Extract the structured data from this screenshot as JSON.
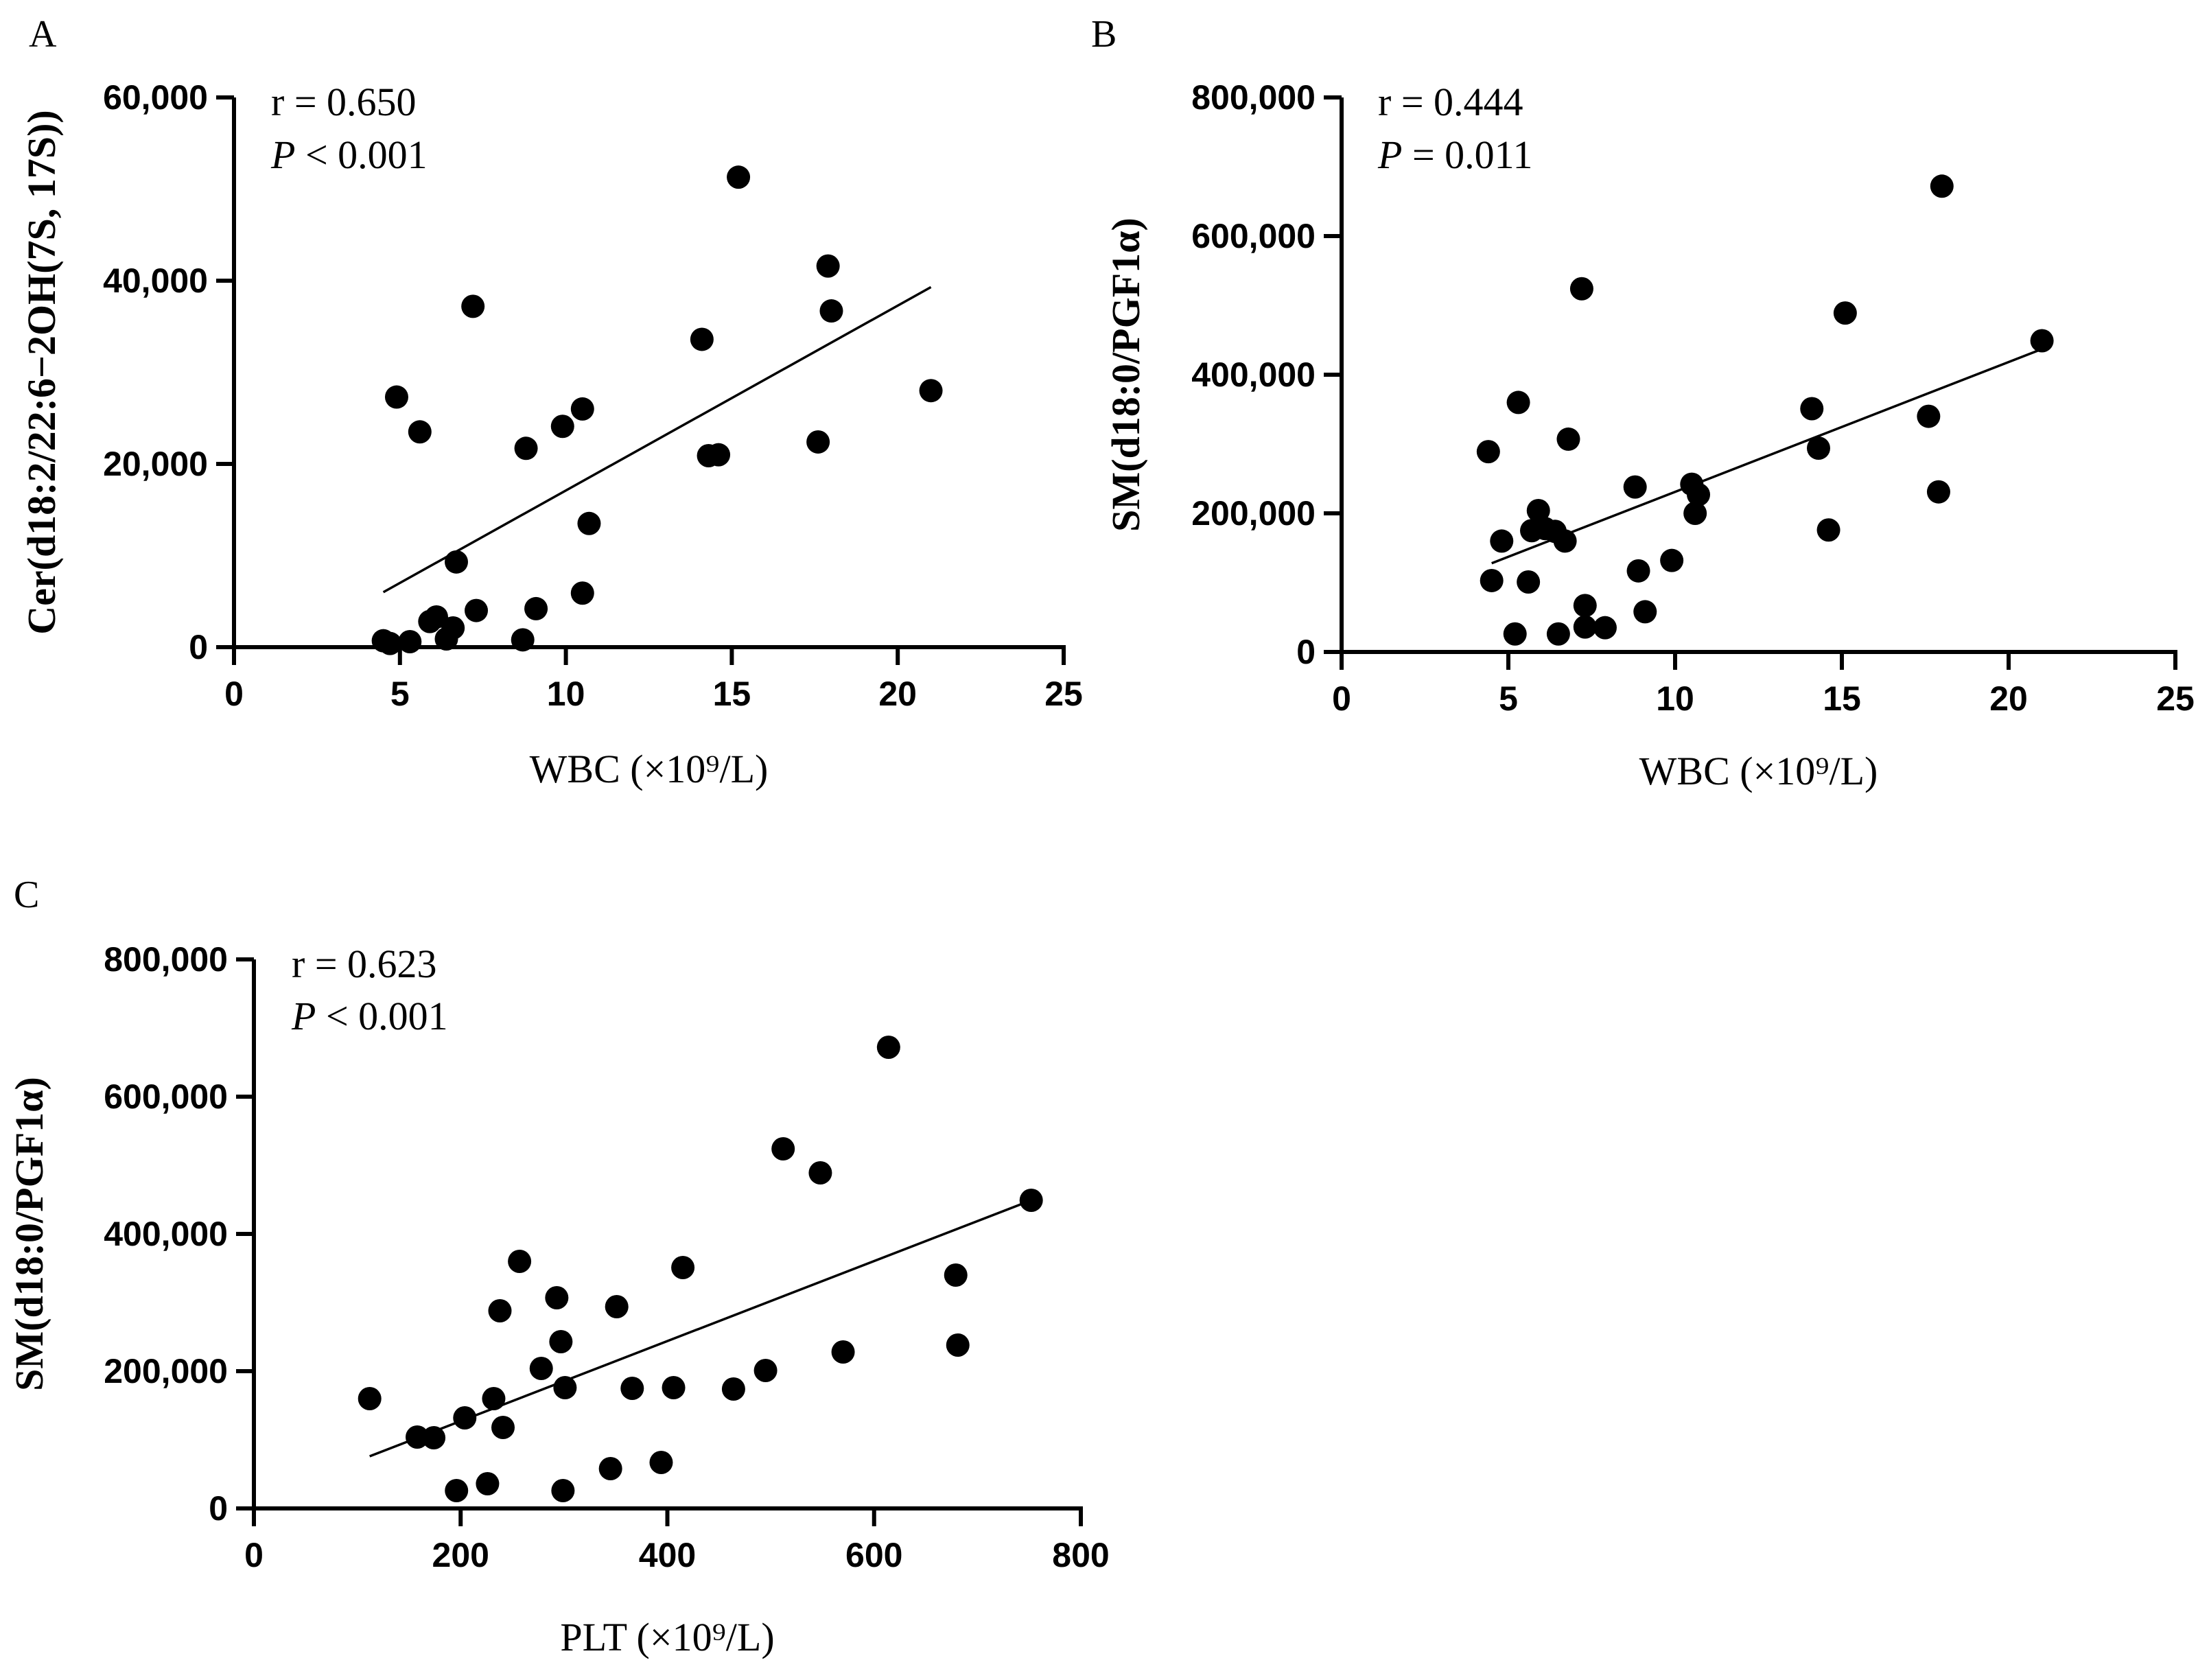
{
  "chart_data": [
    {
      "type": "scatter",
      "panel": "A",
      "xlabel": "WBC (×10⁹/L)",
      "ylabel": "Cer(d18:2/22:6−2OH(7S, 17S))",
      "xlim": [
        0,
        25
      ],
      "ylim": [
        0,
        60000
      ],
      "xticks": [
        0,
        5,
        10,
        15,
        20,
        25
      ],
      "xtick_labels": [
        "0",
        "5",
        "10",
        "15",
        "20",
        "25"
      ],
      "yticks": [
        0,
        20000,
        40000,
        60000
      ],
      "ytick_labels": [
        "0",
        "20,000",
        "40,000",
        "60,000"
      ],
      "stat_r": "r = 0.650",
      "stat_p_symbol": "P",
      "stat_p_rest": " < 0.001",
      "fit_line": [
        [
          4.5,
          6000
        ],
        [
          21.0,
          39300
        ]
      ],
      "points": [
        [
          4.5,
          700
        ],
        [
          4.7,
          400
        ],
        [
          4.9,
          27300
        ],
        [
          5.3,
          600
        ],
        [
          5.6,
          23500
        ],
        [
          5.9,
          2800
        ],
        [
          6.1,
          3300
        ],
        [
          6.4,
          900
        ],
        [
          6.6,
          2100
        ],
        [
          6.7,
          9300
        ],
        [
          7.2,
          37200
        ],
        [
          7.3,
          4000
        ],
        [
          8.7,
          800
        ],
        [
          8.8,
          21700
        ],
        [
          9.1,
          4200
        ],
        [
          9.9,
          24100
        ],
        [
          10.5,
          26000
        ],
        [
          10.5,
          5900
        ],
        [
          10.7,
          13500
        ],
        [
          14.1,
          33600
        ],
        [
          14.3,
          20900
        ],
        [
          14.6,
          21000
        ],
        [
          15.2,
          51300
        ],
        [
          17.6,
          22400
        ],
        [
          17.9,
          41600
        ],
        [
          18.0,
          36700
        ],
        [
          21.0,
          28000
        ]
      ]
    },
    {
      "type": "scatter",
      "panel": "B",
      "xlabel": "WBC (×10⁹/L)",
      "ylabel": "SM(d18:0/PGF1α)",
      "xlim": [
        0,
        25
      ],
      "ylim": [
        0,
        800000
      ],
      "xticks": [
        0,
        5,
        10,
        15,
        20,
        25
      ],
      "xtick_labels": [
        "0",
        "5",
        "10",
        "15",
        "20",
        "25"
      ],
      "yticks": [
        0,
        200000,
        400000,
        600000,
        800000
      ],
      "ytick_labels": [
        "0",
        "200,000",
        "400,000",
        "600,000",
        "800,000"
      ],
      "stat_r": "r = 0.444",
      "stat_p_symbol": "P",
      "stat_p_rest": " = 0.011",
      "fit_line": [
        [
          4.5,
          128000
        ],
        [
          21.0,
          437000
        ]
      ],
      "points": [
        [
          4.4,
          289000
        ],
        [
          4.5,
          103000
        ],
        [
          4.8,
          160000
        ],
        [
          5.2,
          26000
        ],
        [
          5.3,
          360000
        ],
        [
          5.6,
          101000
        ],
        [
          5.7,
          175000
        ],
        [
          5.9,
          204000
        ],
        [
          6.1,
          178000
        ],
        [
          6.4,
          174000
        ],
        [
          6.5,
          26000
        ],
        [
          6.7,
          160000
        ],
        [
          6.8,
          307000
        ],
        [
          7.2,
          524000
        ],
        [
          7.3,
          67000
        ],
        [
          7.3,
          36000
        ],
        [
          7.9,
          35000
        ],
        [
          8.8,
          238000
        ],
        [
          8.9,
          117000
        ],
        [
          9.1,
          58000
        ],
        [
          9.9,
          132000
        ],
        [
          10.5,
          242000
        ],
        [
          10.6,
          200000
        ],
        [
          10.7,
          227000
        ],
        [
          14.1,
          351000
        ],
        [
          14.3,
          294000
        ],
        [
          14.6,
          176000
        ],
        [
          15.1,
          489000
        ],
        [
          17.6,
          340000
        ],
        [
          17.9,
          231000
        ],
        [
          18.0,
          672000
        ],
        [
          21.0,
          449000
        ]
      ]
    },
    {
      "type": "scatter",
      "panel": "C",
      "xlabel": "PLT (×10⁹/L)",
      "ylabel": "SM(d18:0/PGF1α)",
      "xlim": [
        0,
        800
      ],
      "ylim": [
        0,
        800000
      ],
      "xticks": [
        0,
        200,
        400,
        600,
        800
      ],
      "xtick_labels": [
        "0",
        "200",
        "400",
        "600",
        "800"
      ],
      "yticks": [
        0,
        200000,
        400000,
        600000,
        800000
      ],
      "ytick_labels": [
        "0",
        "200,000",
        "400,000",
        "600,000",
        "800,000"
      ],
      "stat_r": "r = 0.623",
      "stat_p_symbol": "P",
      "stat_p_rest": " < 0.001",
      "fit_line": [
        [
          112,
          76000
        ],
        [
          752,
          449000
        ]
      ],
      "points": [
        [
          112,
          160000
        ],
        [
          158,
          104000
        ],
        [
          174,
          103000
        ],
        [
          196,
          26000
        ],
        [
          204,
          132000
        ],
        [
          226,
          36000
        ],
        [
          232,
          160000
        ],
        [
          238,
          288000
        ],
        [
          241,
          118000
        ],
        [
          257,
          360000
        ],
        [
          278,
          204000
        ],
        [
          293,
          307000
        ],
        [
          297,
          243000
        ],
        [
          299,
          26000
        ],
        [
          301,
          176000
        ],
        [
          345,
          58000
        ],
        [
          351,
          294000
        ],
        [
          366,
          175000
        ],
        [
          394,
          67000
        ],
        [
          406,
          176000
        ],
        [
          415,
          351000
        ],
        [
          464,
          174000
        ],
        [
          495,
          201000
        ],
        [
          512,
          524000
        ],
        [
          548,
          489000
        ],
        [
          570,
          228000
        ],
        [
          614,
          672000
        ],
        [
          679,
          340000
        ],
        [
          681,
          238000
        ],
        [
          752,
          449000
        ]
      ]
    }
  ]
}
